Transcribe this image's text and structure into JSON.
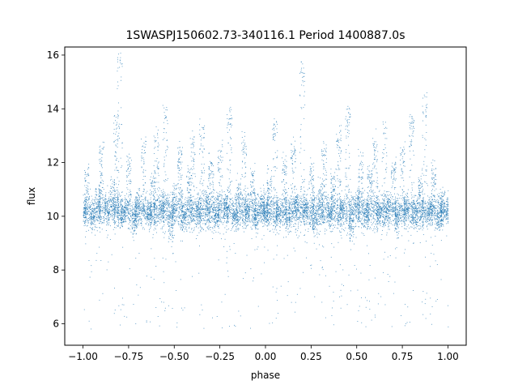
{
  "chart_data": {
    "type": "scatter",
    "title": "1SWASPJ150602.73-340116.1 Period 1400887.0s",
    "xlabel": "phase",
    "ylabel": "flux",
    "xlim": [
      -1.1,
      1.1
    ],
    "ylim": [
      5.2,
      16.3
    ],
    "xticks": [
      -1.0,
      -0.75,
      -0.5,
      -0.25,
      0.0,
      0.25,
      0.5,
      0.75,
      1.0
    ],
    "xtick_labels": [
      "−1.00",
      "−0.75",
      "−0.50",
      "−0.25",
      "0.00",
      "0.25",
      "0.50",
      "0.75",
      "1.00"
    ],
    "yticks": [
      6,
      8,
      10,
      12,
      14,
      16
    ],
    "ytick_labels": [
      "6",
      "8",
      "10",
      "12",
      "14",
      "16"
    ],
    "grid": false,
    "color": "#1f77b4",
    "series": [
      {
        "description_points": [
          {
            "x": -1.0,
            "y": 10.2
          },
          {
            "x": -0.98,
            "y": 11.6
          },
          {
            "x": -0.95,
            "y": 9.9
          },
          {
            "x": -0.92,
            "y": 10.8
          },
          {
            "x": -0.9,
            "y": 12.4
          },
          {
            "x": -0.87,
            "y": 10.3
          },
          {
            "x": -0.84,
            "y": 11.2
          },
          {
            "x": -0.82,
            "y": 13.5
          },
          {
            "x": -0.8,
            "y": 15.6
          },
          {
            "x": -0.78,
            "y": 10.1
          },
          {
            "x": -0.75,
            "y": 11.9
          },
          {
            "x": -0.72,
            "y": 9.6
          },
          {
            "x": -0.7,
            "y": 10.7
          },
          {
            "x": -0.67,
            "y": 12.6
          },
          {
            "x": -0.64,
            "y": 10.0
          },
          {
            "x": -0.62,
            "y": 11.4
          },
          {
            "x": -0.6,
            "y": 12.9
          },
          {
            "x": -0.57,
            "y": 10.4
          },
          {
            "x": -0.55,
            "y": 13.8
          },
          {
            "x": -0.52,
            "y": 9.3
          },
          {
            "x": -0.5,
            "y": 10.9
          },
          {
            "x": -0.47,
            "y": 12.2
          },
          {
            "x": -0.45,
            "y": 9.8
          },
          {
            "x": -0.42,
            "y": 11.5
          },
          {
            "x": -0.4,
            "y": 12.8
          },
          {
            "x": -0.37,
            "y": 10.2
          },
          {
            "x": -0.35,
            "y": 13.1
          },
          {
            "x": -0.32,
            "y": 10.6
          },
          {
            "x": -0.3,
            "y": 11.8
          },
          {
            "x": -0.27,
            "y": 9.9
          },
          {
            "x": -0.25,
            "y": 12.3
          },
          {
            "x": -0.22,
            "y": 10.5
          },
          {
            "x": -0.2,
            "y": 13.6
          },
          {
            "x": -0.17,
            "y": 10.0
          },
          {
            "x": -0.15,
            "y": 11.1
          },
          {
            "x": -0.12,
            "y": 12.7
          },
          {
            "x": -0.1,
            "y": 10.3
          },
          {
            "x": -0.07,
            "y": 11.6
          },
          {
            "x": -0.05,
            "y": 9.7
          },
          {
            "x": -0.02,
            "y": 10.8
          },
          {
            "x": 0.0,
            "y": 10.1
          },
          {
            "x": 0.02,
            "y": 11.4
          },
          {
            "x": 0.05,
            "y": 13.2
          },
          {
            "x": 0.07,
            "y": 10.2
          },
          {
            "x": 0.1,
            "y": 11.9
          },
          {
            "x": 0.12,
            "y": 9.8
          },
          {
            "x": 0.15,
            "y": 12.5
          },
          {
            "x": 0.17,
            "y": 10.6
          },
          {
            "x": 0.2,
            "y": 15.3
          },
          {
            "x": 0.22,
            "y": 10.4
          },
          {
            "x": 0.25,
            "y": 11.7
          },
          {
            "x": 0.27,
            "y": 9.5
          },
          {
            "x": 0.3,
            "y": 10.9
          },
          {
            "x": 0.32,
            "y": 12.4
          },
          {
            "x": 0.35,
            "y": 10.0
          },
          {
            "x": 0.37,
            "y": 11.3
          },
          {
            "x": 0.4,
            "y": 12.9
          },
          {
            "x": 0.42,
            "y": 10.3
          },
          {
            "x": 0.45,
            "y": 13.7
          },
          {
            "x": 0.47,
            "y": 9.4
          },
          {
            "x": 0.5,
            "y": 10.7
          },
          {
            "x": 0.52,
            "y": 12.1
          },
          {
            "x": 0.55,
            "y": 9.9
          },
          {
            "x": 0.57,
            "y": 11.5
          },
          {
            "x": 0.6,
            "y": 12.6
          },
          {
            "x": 0.62,
            "y": 10.1
          },
          {
            "x": 0.65,
            "y": 13.2
          },
          {
            "x": 0.67,
            "y": 10.5
          },
          {
            "x": 0.7,
            "y": 11.8
          },
          {
            "x": 0.72,
            "y": 9.7
          },
          {
            "x": 0.75,
            "y": 12.3
          },
          {
            "x": 0.77,
            "y": 10.4
          },
          {
            "x": 0.8,
            "y": 13.5
          },
          {
            "x": 0.82,
            "y": 10.0
          },
          {
            "x": 0.85,
            "y": 11.2
          },
          {
            "x": 0.87,
            "y": 14.1
          },
          {
            "x": 0.9,
            "y": 10.2
          },
          {
            "x": 0.92,
            "y": 11.6
          },
          {
            "x": 0.95,
            "y": 9.8
          },
          {
            "x": 0.97,
            "y": 10.7
          },
          {
            "x": 1.0,
            "y": 10.3
          }
        ]
      }
    ]
  }
}
